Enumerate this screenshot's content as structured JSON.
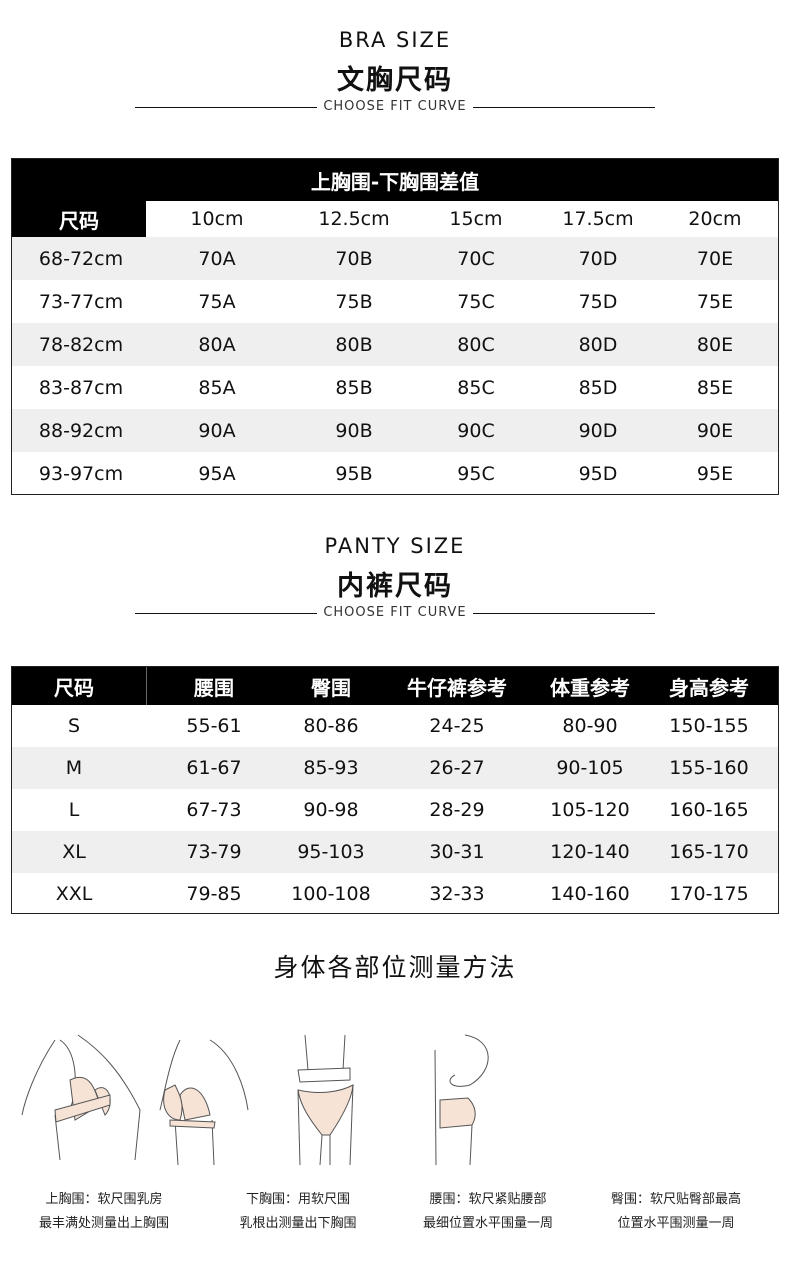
{
  "bra": {
    "title_en": "BRA SIZE",
    "title_cn": "文胸尺码",
    "subtitle": "CHOOSE FIT CURVE",
    "group_header": "上胸围-下胸围差值",
    "columns": [
      "尺码",
      "10cm",
      "12.5cm",
      "15cm",
      "17.5cm",
      "20cm"
    ],
    "rows": [
      [
        "68-72cm",
        "70A",
        "70B",
        "70C",
        "70D",
        "70E"
      ],
      [
        "73-77cm",
        "75A",
        "75B",
        "75C",
        "75D",
        "75E"
      ],
      [
        "78-82cm",
        "80A",
        "80B",
        "80C",
        "80D",
        "80E"
      ],
      [
        "83-87cm",
        "85A",
        "85B",
        "85C",
        "85D",
        "85E"
      ],
      [
        "88-92cm",
        "90A",
        "90B",
        "90C",
        "90D",
        "90E"
      ],
      [
        "93-97cm",
        "95A",
        "95B",
        "95C",
        "95D",
        "95E"
      ]
    ]
  },
  "panty": {
    "title_en": "PANTY SIZE",
    "title_cn": "内裤尺码",
    "subtitle": "CHOOSE FIT CURVE",
    "columns": [
      "尺码",
      "腰围",
      "臀围",
      "牛仔裤参考",
      "体重参考",
      "身高参考"
    ],
    "rows": [
      [
        "S",
        "55-61",
        "80-86",
        "24-25",
        "80-90",
        "150-155"
      ],
      [
        "M",
        "61-67",
        "85-93",
        "26-27",
        "90-105",
        "155-160"
      ],
      [
        "L",
        "67-73",
        "90-98",
        "28-29",
        "105-120",
        "160-165"
      ],
      [
        "XL",
        "73-79",
        "95-103",
        "30-31",
        "120-140",
        "165-170"
      ],
      [
        "XXL",
        "79-85",
        "100-108",
        "32-33",
        "140-160",
        "170-175"
      ]
    ]
  },
  "measure": {
    "title": "身体各部位测量方法",
    "items": [
      {
        "line1": "上胸围：软尺围乳房",
        "line2": "最丰满处测量出上胸围"
      },
      {
        "line1": "下胸围：用软尺围",
        "line2": "乳根出测量出下胸围"
      },
      {
        "line1": "腰围：软尺紧贴腰部",
        "line2": "最细位置水平围量一周"
      },
      {
        "line1": "臀围：软尺贴臀部最高",
        "line2": "位置水平围测量一周"
      }
    ]
  },
  "colors": {
    "header": "#000000",
    "stripe": "#efefef",
    "skin": "#f6e3d6"
  }
}
